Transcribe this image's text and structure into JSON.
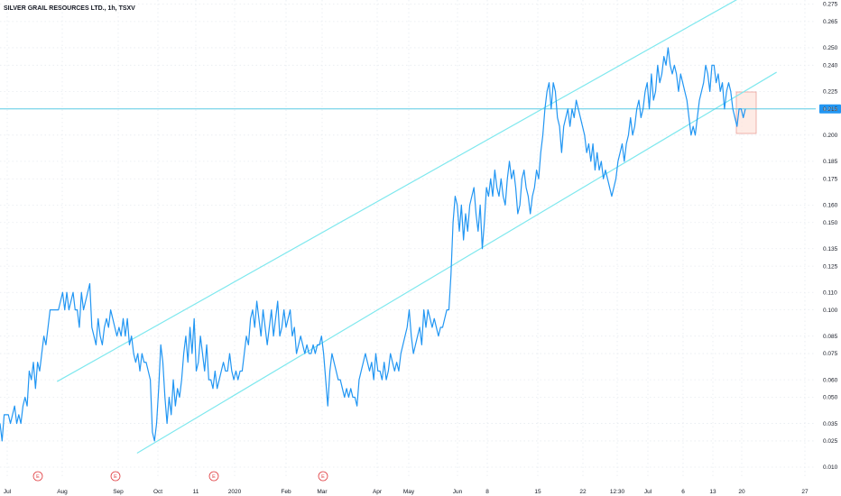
{
  "chart_data": {
    "type": "line",
    "title": "SILVER GRAIL RESOURCES LTD., 1h, TSXV",
    "x_ticks": [
      "Jul",
      "Aug",
      "Sep",
      "Oct",
      "11",
      "2020",
      "Feb",
      "Mar",
      "Apr",
      "May",
      "Jun",
      "8",
      "15",
      "22",
      "12:30",
      "Jul",
      "6",
      "13",
      "20",
      "27"
    ],
    "y_ticks": [
      "0.275",
      "0.265",
      "0.250",
      "0.240",
      "0.225",
      "0.215",
      "0.200",
      "0.185",
      "0.175",
      "0.160",
      "0.150",
      "0.135",
      "0.125",
      "0.110",
      "0.100",
      "0.085",
      "0.075",
      "0.060",
      "0.050",
      "0.035",
      "0.025",
      "0.010"
    ],
    "ylim": [
      0.005,
      0.28
    ],
    "last_price": "0.215",
    "earnings_marker_label": "E",
    "earnings_markers_count": 4,
    "grid": true,
    "colors": {
      "price_line": "#2196f3",
      "channel": "#7fe8ee",
      "grid": "#e7ebf0",
      "last_price_line": "#5ccbe6",
      "last_price_bg": "#2196f3",
      "earnings": "#e03a3e",
      "highlight_box_fill": "#fde3da",
      "highlight_box_stroke": "#e9a09a"
    },
    "series": [
      {
        "values": [
          0.035,
          0.025,
          0.04,
          0.04,
          0.04,
          0.035,
          0.04,
          0.045,
          0.035,
          0.04,
          0.035,
          0.045,
          0.05,
          0.045,
          0.065,
          0.06,
          0.07,
          0.055,
          0.07,
          0.065,
          0.075,
          0.085,
          0.08,
          0.09,
          0.1,
          0.1,
          0.1,
          0.1,
          0.1,
          0.105,
          0.11,
          0.1,
          0.11,
          0.1,
          0.105,
          0.11,
          0.1,
          0.1,
          0.09,
          0.11,
          0.1,
          0.105,
          0.11,
          0.115,
          0.09,
          0.085,
          0.08,
          0.095,
          0.085,
          0.08,
          0.09,
          0.095,
          0.09,
          0.1,
          0.095,
          0.09,
          0.085,
          0.09,
          0.085,
          0.095,
          0.085,
          0.095,
          0.08,
          0.085,
          0.075,
          0.07,
          0.075,
          0.065,
          0.075,
          0.07,
          0.07,
          0.065,
          0.06,
          0.03,
          0.025,
          0.035,
          0.055,
          0.08,
          0.07,
          0.05,
          0.035,
          0.05,
          0.04,
          0.06,
          0.045,
          0.055,
          0.05,
          0.06,
          0.075,
          0.085,
          0.07,
          0.09,
          0.075,
          0.095,
          0.065,
          0.07,
          0.085,
          0.075,
          0.065,
          0.08,
          0.06,
          0.06,
          0.055,
          0.065,
          0.055,
          0.06,
          0.065,
          0.07,
          0.065,
          0.065,
          0.075,
          0.065,
          0.06,
          0.065,
          0.06,
          0.065,
          0.065,
          0.075,
          0.085,
          0.08,
          0.095,
          0.1,
          0.09,
          0.105,
          0.095,
          0.085,
          0.1,
          0.09,
          0.08,
          0.09,
          0.1,
          0.085,
          0.095,
          0.105,
          0.085,
          0.09,
          0.1,
          0.09,
          0.095,
          0.1,
          0.085,
          0.09,
          0.075,
          0.08,
          0.085,
          0.08,
          0.075,
          0.08,
          0.075,
          0.075,
          0.08,
          0.075,
          0.08,
          0.08,
          0.085,
          0.075,
          0.06,
          0.045,
          0.065,
          0.075,
          0.07,
          0.065,
          0.06,
          0.06,
          0.055,
          0.05,
          0.055,
          0.05,
          0.055,
          0.05,
          0.05,
          0.045,
          0.06,
          0.065,
          0.07,
          0.075,
          0.07,
          0.065,
          0.07,
          0.06,
          0.075,
          0.065,
          0.065,
          0.06,
          0.07,
          0.06,
          0.065,
          0.075,
          0.07,
          0.065,
          0.07,
          0.065,
          0.075,
          0.08,
          0.085,
          0.09,
          0.1,
          0.085,
          0.075,
          0.08,
          0.085,
          0.09,
          0.08,
          0.1,
          0.09,
          0.1,
          0.095,
          0.09,
          0.095,
          0.09,
          0.085,
          0.09,
          0.09,
          0.095,
          0.1,
          0.1,
          0.12,
          0.15,
          0.165,
          0.16,
          0.145,
          0.16,
          0.14,
          0.155,
          0.145,
          0.16,
          0.165,
          0.17,
          0.155,
          0.145,
          0.16,
          0.135,
          0.15,
          0.17,
          0.165,
          0.175,
          0.165,
          0.18,
          0.17,
          0.165,
          0.175,
          0.165,
          0.16,
          0.175,
          0.185,
          0.175,
          0.18,
          0.17,
          0.155,
          0.16,
          0.175,
          0.18,
          0.17,
          0.165,
          0.155,
          0.165,
          0.17,
          0.18,
          0.175,
          0.19,
          0.2,
          0.215,
          0.225,
          0.23,
          0.215,
          0.23,
          0.225,
          0.21,
          0.205,
          0.19,
          0.205,
          0.21,
          0.215,
          0.205,
          0.215,
          0.21,
          0.22,
          0.215,
          0.21,
          0.205,
          0.2,
          0.19,
          0.195,
          0.185,
          0.195,
          0.18,
          0.19,
          0.18,
          0.185,
          0.175,
          0.18,
          0.175,
          0.17,
          0.165,
          0.17,
          0.175,
          0.185,
          0.19,
          0.195,
          0.185,
          0.195,
          0.2,
          0.21,
          0.2,
          0.205,
          0.215,
          0.22,
          0.21,
          0.215,
          0.225,
          0.23,
          0.215,
          0.235,
          0.22,
          0.225,
          0.24,
          0.23,
          0.235,
          0.245,
          0.24,
          0.25,
          0.24,
          0.235,
          0.24,
          0.235,
          0.225,
          0.235,
          0.23,
          0.225,
          0.22,
          0.21,
          0.2,
          0.205,
          0.2,
          0.21,
          0.22,
          0.225,
          0.23,
          0.24,
          0.235,
          0.225,
          0.24,
          0.24,
          0.23,
          0.235,
          0.225,
          0.23,
          0.215,
          0.225,
          0.23,
          0.225,
          0.215,
          0.21,
          0.205,
          0.215,
          0.215,
          0.21,
          0.215
        ]
      }
    ],
    "channel_lines": [
      {
        "x_start": 0.07,
        "y_start": 0.059,
        "x_end": 0.905,
        "y_end": 0.278
      },
      {
        "x_start": 0.168,
        "y_start": 0.018,
        "x_end": 0.952,
        "y_end": 0.236
      }
    ]
  }
}
